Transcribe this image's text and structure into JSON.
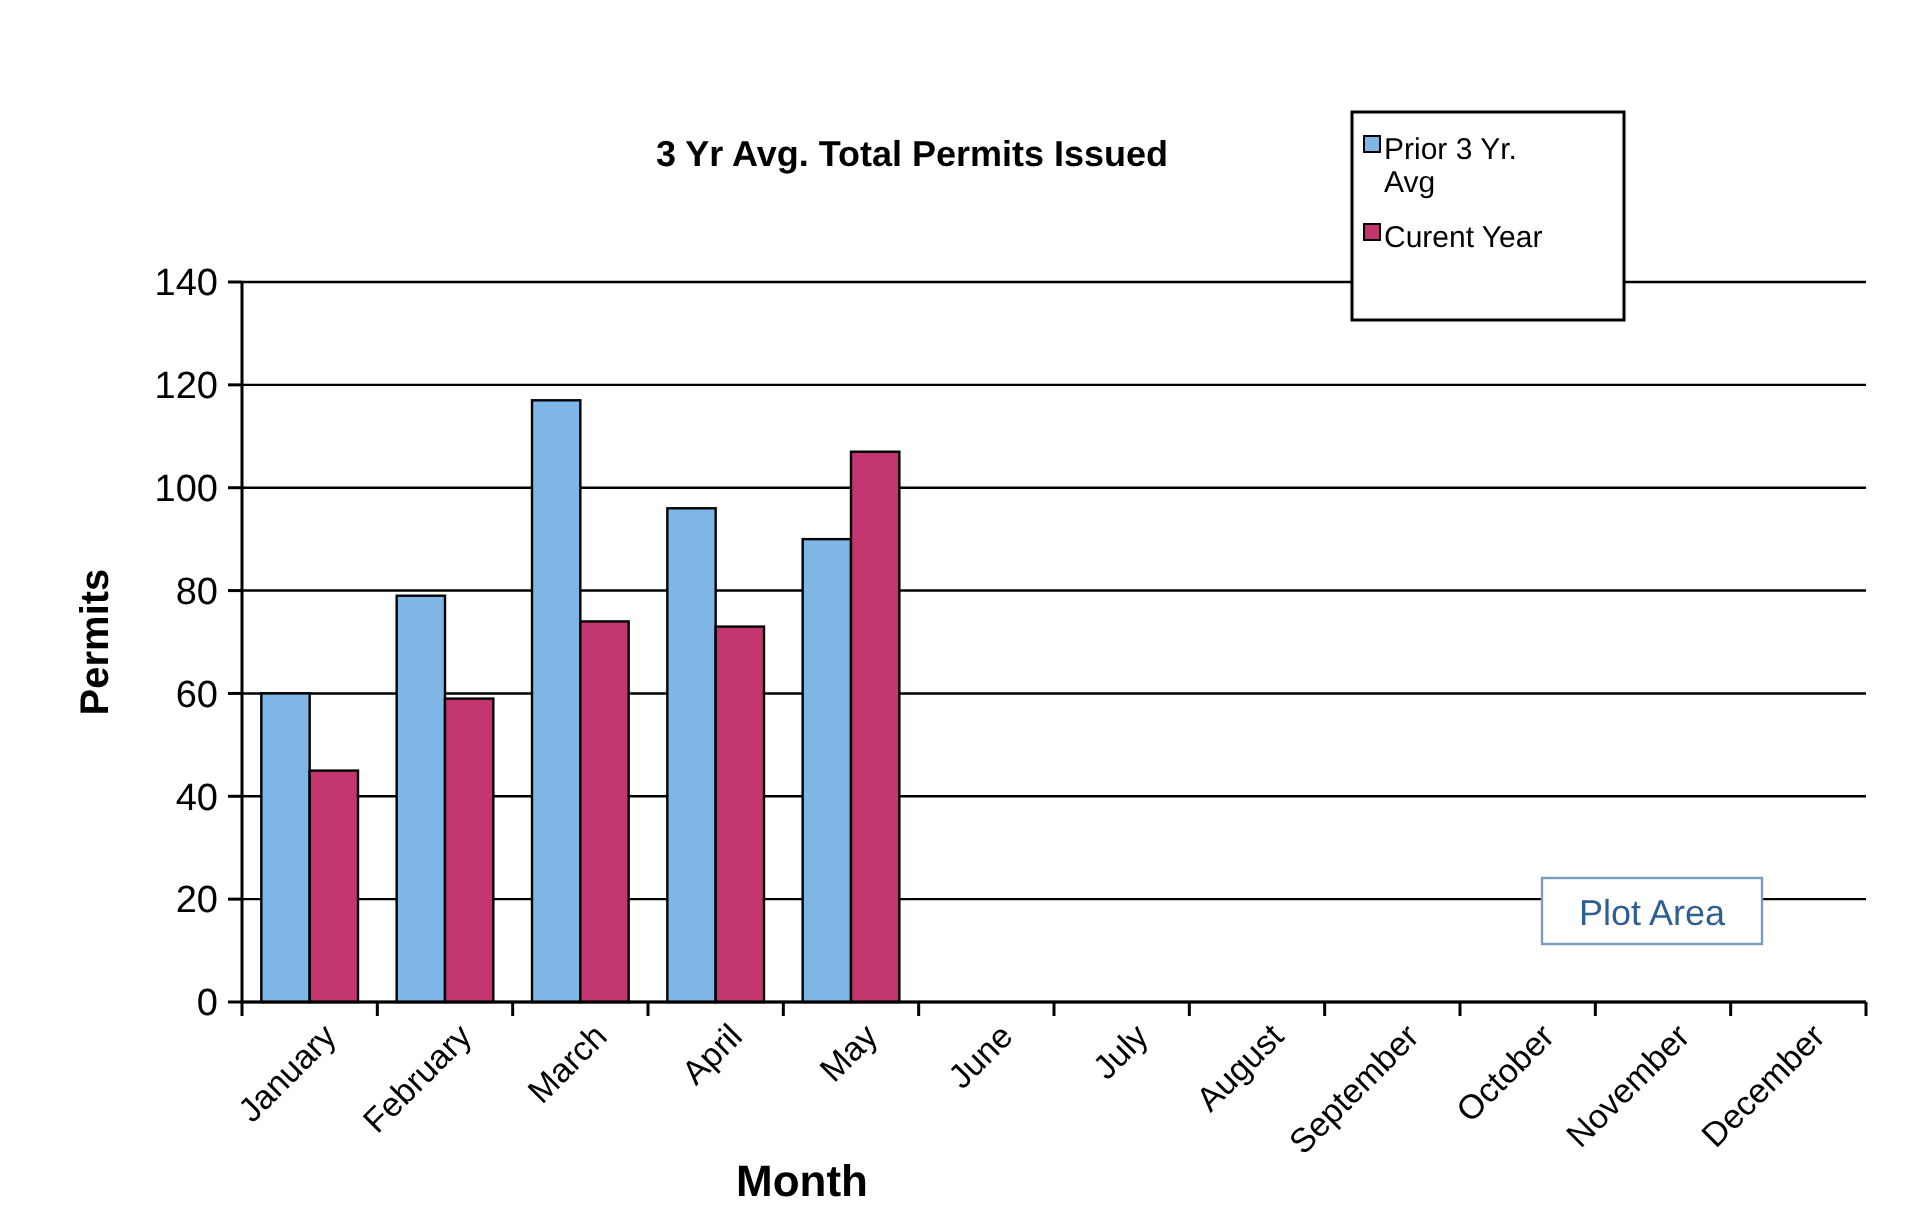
{
  "chart_data": {
    "type": "bar",
    "title": "3 Yr Avg. Total Permits Issued",
    "xlabel": "Month",
    "ylabel": "Permits",
    "categories": [
      "January",
      "February",
      "March",
      "April",
      "May",
      "June",
      "July",
      "August",
      "September",
      "October",
      "November",
      "December"
    ],
    "series": [
      {
        "name": "Prior 3 Yr. Avg",
        "color": "#7eb6e8",
        "values": [
          60,
          79,
          117,
          96,
          90,
          null,
          null,
          null,
          null,
          null,
          null,
          null
        ]
      },
      {
        "name": "Curent Year",
        "color": "#c2356e",
        "values": [
          45,
          59,
          74,
          73,
          107,
          null,
          null,
          null,
          null,
          null,
          null,
          null
        ]
      }
    ],
    "ylim": [
      0,
      140
    ],
    "yticks": [
      0,
      20,
      40,
      60,
      80,
      100,
      120,
      140
    ],
    "grid": "y",
    "legend": "top right",
    "annotations": [
      "Plot Area"
    ]
  }
}
